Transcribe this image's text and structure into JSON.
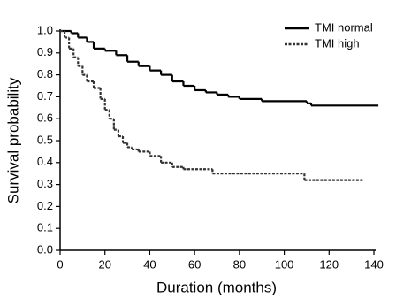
{
  "chart_data": {
    "type": "step",
    "xlabel": "Duration (months)",
    "ylabel": "Survival probability",
    "xlim": [
      0,
      140
    ],
    "xticks": [
      0,
      20,
      40,
      60,
      80,
      100,
      120,
      140
    ],
    "ylim": [
      0,
      1
    ],
    "yticks": [
      {
        "value": 0,
        "label": "0.0"
      },
      0.1,
      0.2,
      0.3,
      0.4,
      0.5,
      0.6,
      0.7,
      0.8,
      0.9,
      {
        "value": 1,
        "label": "1.0"
      }
    ],
    "legend": "top-right",
    "series": [
      {
        "name": "TMI normal",
        "color": "#000000",
        "line_style": "solid",
        "x": [
          0,
          5,
          8,
          12,
          15,
          20,
          25,
          30,
          35,
          40,
          45,
          50,
          55,
          60,
          65,
          70,
          75,
          80,
          90,
          110,
          112,
          142
        ],
        "values": [
          1.0,
          0.99,
          0.97,
          0.95,
          0.92,
          0.91,
          0.89,
          0.86,
          0.84,
          0.82,
          0.8,
          0.77,
          0.75,
          0.73,
          0.72,
          0.71,
          0.7,
          0.69,
          0.68,
          0.67,
          0.66,
          0.66
        ]
      },
      {
        "name": "TMI high",
        "color": "#333333",
        "line_style": "dashed",
        "x": [
          0,
          2,
          4,
          6,
          8,
          10,
          12,
          15,
          18,
          20,
          22,
          24,
          26,
          28,
          30,
          32,
          35,
          40,
          45,
          50,
          55,
          68,
          109,
          135
        ],
        "values": [
          1.0,
          0.97,
          0.92,
          0.88,
          0.84,
          0.8,
          0.77,
          0.74,
          0.69,
          0.64,
          0.6,
          0.55,
          0.52,
          0.49,
          0.47,
          0.46,
          0.45,
          0.43,
          0.4,
          0.38,
          0.37,
          0.35,
          0.32,
          0.32
        ]
      }
    ]
  }
}
